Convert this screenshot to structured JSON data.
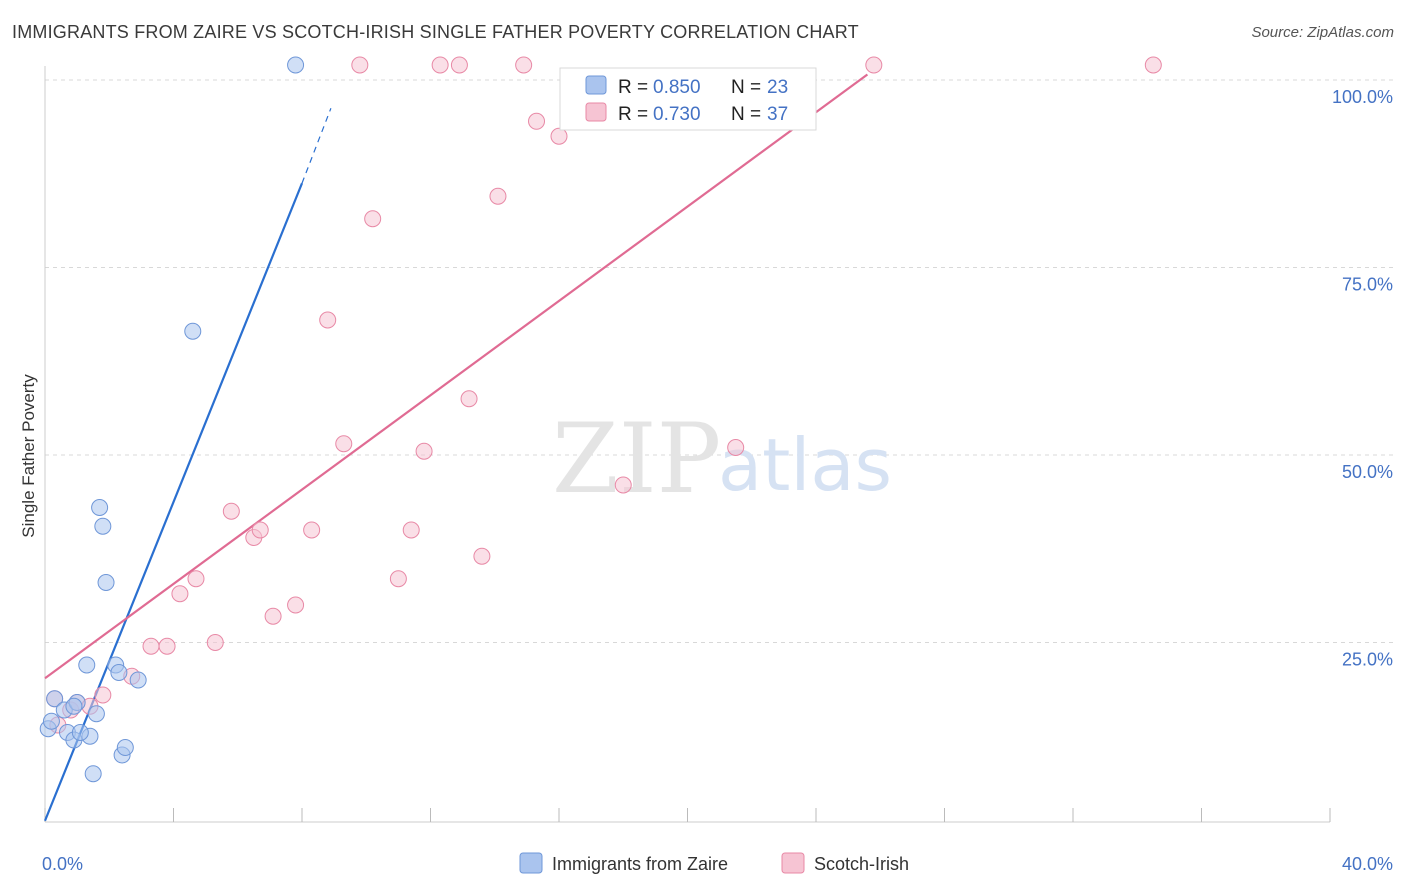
{
  "title": "IMMIGRANTS FROM ZAIRE VS SCOTCH-IRISH SINGLE FATHER POVERTY CORRELATION CHART",
  "source": "Source: ZipAtlas.com",
  "watermark": {
    "zip": "ZIP",
    "atlas": "atlas"
  },
  "colors": {
    "blue_fill": "#aac4ee",
    "blue_stroke": "#6f97d8",
    "blue_line": "#2a6fd0",
    "pink_fill": "#f6c4d3",
    "pink_stroke": "#e889a6",
    "pink_line": "#e06b93",
    "grid": "#d8d8d8",
    "tick_text": "#4472c4"
  },
  "chart_data": {
    "type": "scatter",
    "title": "IMMIGRANTS FROM ZAIRE VS SCOTCH-IRISH SINGLE FATHER POVERTY CORRELATION CHART",
    "xlabel": "",
    "ylabel": "Single Father Poverty",
    "xlim": [
      0,
      40
    ],
    "ylim": [
      0,
      100
    ],
    "x_tick_labels": [
      "0.0%",
      "40.0%"
    ],
    "y_ticks": [
      25,
      50,
      75,
      100
    ],
    "y_tick_labels": [
      "25.0%",
      "50.0%",
      "75.0%",
      "100.0%"
    ],
    "legend": [
      {
        "swatch": "blue",
        "r_label": "R = ",
        "r_value": "0.850",
        "n_label": "N = ",
        "n_value": "23"
      },
      {
        "swatch": "pink",
        "r_label": "R = ",
        "r_value": "0.730",
        "n_label": "N = ",
        "n_value": "37"
      }
    ],
    "series": [
      {
        "name": "Immigrants from Zaire",
        "color": "blue",
        "points": [
          [
            0.1,
            13.5
          ],
          [
            0.2,
            14.5
          ],
          [
            0.3,
            17.5
          ],
          [
            0.6,
            16.0
          ],
          [
            0.7,
            13.0
          ],
          [
            0.9,
            12.0
          ],
          [
            1.0,
            17.0
          ],
          [
            1.3,
            22.0
          ],
          [
            1.4,
            12.5
          ],
          [
            1.5,
            7.5
          ],
          [
            1.6,
            15.5
          ],
          [
            1.7,
            43.0
          ],
          [
            1.8,
            40.5
          ],
          [
            1.9,
            33.0
          ],
          [
            2.2,
            22.0
          ],
          [
            2.3,
            21.0
          ],
          [
            2.4,
            10.0
          ],
          [
            2.5,
            11.0
          ],
          [
            2.9,
            20.0
          ],
          [
            4.6,
            66.5
          ],
          [
            7.8,
            102.0
          ],
          [
            0.9,
            16.5
          ],
          [
            1.1,
            13.0
          ]
        ],
        "trend": {
          "x": [
            0.0,
            8.0
          ],
          "y": [
            3.5,
            88.5
          ],
          "dashed_to": [
            8.9,
            98.5
          ]
        }
      },
      {
        "name": "Scotch-Irish",
        "color": "pink",
        "points": [
          [
            0.3,
            17.5
          ],
          [
            0.8,
            16.0
          ],
          [
            1.0,
            17.0
          ],
          [
            1.4,
            16.5
          ],
          [
            1.8,
            18.0
          ],
          [
            2.7,
            20.5
          ],
          [
            3.3,
            24.5
          ],
          [
            3.8,
            24.5
          ],
          [
            4.2,
            31.5
          ],
          [
            4.7,
            33.5
          ],
          [
            5.3,
            25.0
          ],
          [
            5.8,
            42.5
          ],
          [
            6.5,
            39.0
          ],
          [
            6.7,
            40.0
          ],
          [
            7.1,
            28.5
          ],
          [
            7.8,
            30.0
          ],
          [
            8.3,
            40.0
          ],
          [
            8.8,
            68.0
          ],
          [
            9.3,
            51.5
          ],
          [
            9.8,
            102.0
          ],
          [
            10.2,
            81.5
          ],
          [
            11.0,
            33.5
          ],
          [
            11.4,
            40.0
          ],
          [
            11.8,
            50.5
          ],
          [
            12.3,
            102.0
          ],
          [
            12.9,
            102.0
          ],
          [
            13.2,
            57.5
          ],
          [
            13.6,
            36.5
          ],
          [
            14.1,
            84.5
          ],
          [
            14.9,
            102.0
          ],
          [
            15.3,
            94.5
          ],
          [
            16.0,
            92.5
          ],
          [
            18.0,
            46.0
          ],
          [
            21.5,
            51.0
          ],
          [
            25.8,
            102.0
          ],
          [
            34.5,
            102.0
          ],
          [
            0.4,
            14.0
          ]
        ],
        "trend": {
          "x": [
            0.0,
            25.6
          ],
          "y": [
            22.5,
            103.0
          ]
        }
      }
    ]
  }
}
